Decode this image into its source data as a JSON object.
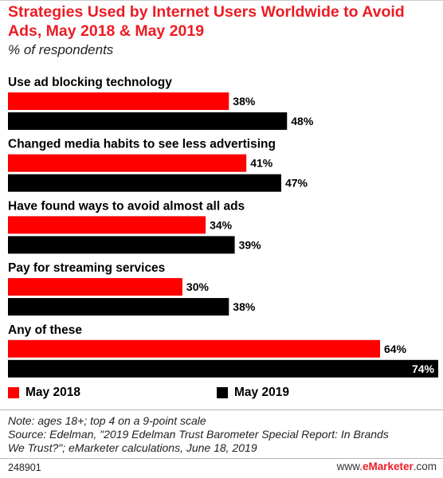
{
  "title": "Strategies Used by Internet Users Worldwide to Avoid Ads, May 2018 & May 2019",
  "subtitle": "% of respondents",
  "chart_data": {
    "type": "bar",
    "orientation": "horizontal",
    "categories": [
      "Use ad blocking technology",
      "Changed media habits to see less advertising",
      "Have found ways to avoid almost all ads",
      "Pay for streaming services",
      "Any of these"
    ],
    "series": [
      {
        "name": "May 2018",
        "color": "#ff0000",
        "values": [
          38,
          41,
          34,
          30,
          64
        ]
      },
      {
        "name": "May 2019",
        "color": "#000000",
        "values": [
          48,
          47,
          39,
          38,
          74
        ]
      }
    ],
    "value_suffix": "%",
    "xlim": [
      0,
      74
    ],
    "grid": false,
    "legend_position": "bottom"
  },
  "legend": {
    "items": [
      {
        "label": "May 2018",
        "color": "#ff0000"
      },
      {
        "label": "May 2019",
        "color": "#000000"
      }
    ]
  },
  "notes": {
    "line1": "Note: ages 18+; top 4 on a 9-point scale",
    "line2": "Source: Edelman, \"2019 Edelman Trust Barometer Special Report: In Brands",
    "line3": "We Trust?\"; eMarketer calculations, June 18, 2019"
  },
  "footer": {
    "id": "248901",
    "brand_prefix": "www.",
    "brand_strong": "eMarketer",
    "brand_suffix": ".com"
  }
}
